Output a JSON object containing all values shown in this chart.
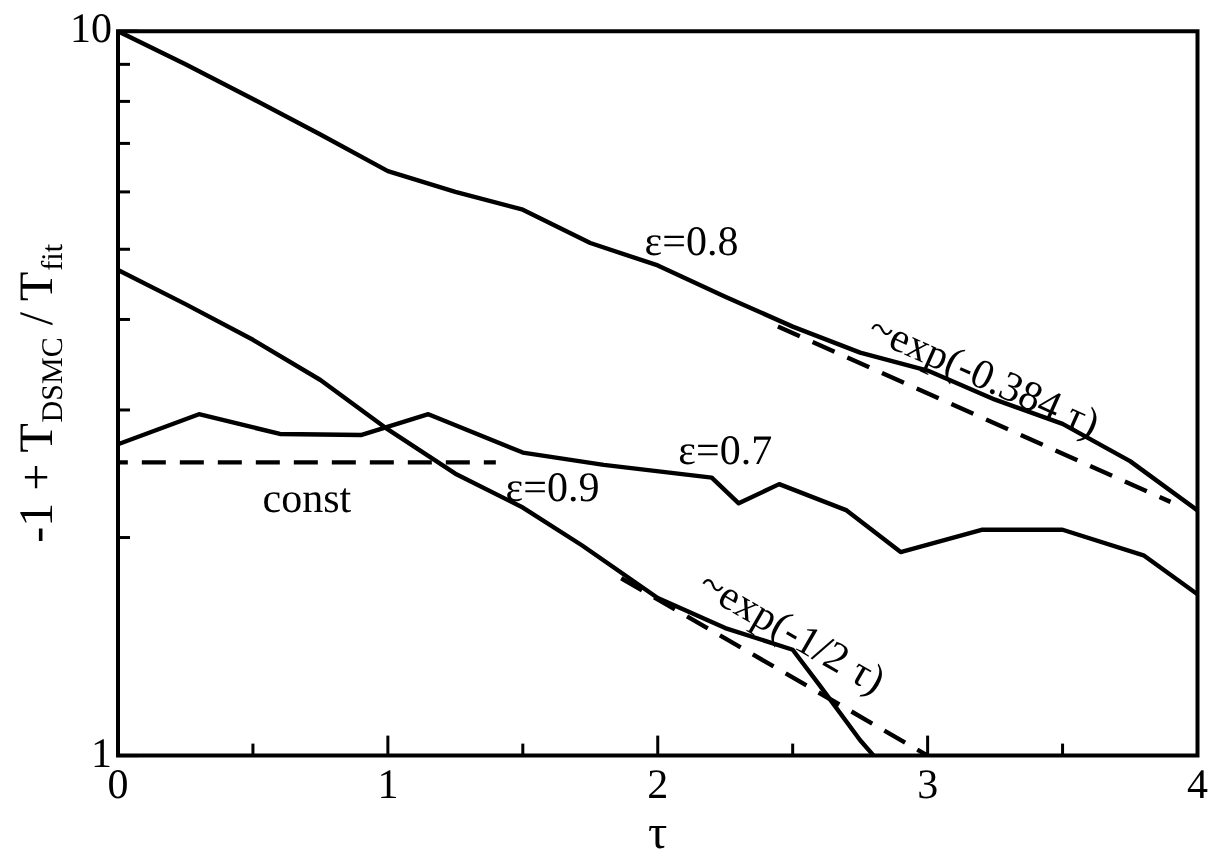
{
  "chart_data": {
    "type": "line",
    "xlabel": "τ",
    "ylabel": "-1 + T$_{DSMC}$ / T$_{fit}$",
    "log": "y",
    "grid": false,
    "legend": false,
    "marker": "none",
    "xlim": [
      0,
      4
    ],
    "ylim": [
      1,
      10
    ],
    "xticks": [
      0,
      {
        "value": 0.5,
        "label": null
      },
      1,
      {
        "value": 1.5,
        "label": null
      },
      2,
      {
        "value": 2.5,
        "label": null
      },
      3,
      {
        "value": 3.5,
        "label": null
      },
      4
    ],
    "yticks": [
      1,
      {
        "value": 2,
        "label": null
      },
      {
        "value": 3,
        "label": null
      },
      {
        "value": 4,
        "label": null
      },
      {
        "value": 5,
        "label": null
      },
      {
        "value": 6,
        "label": null
      },
      {
        "value": 7,
        "label": null
      },
      {
        "value": 8,
        "label": null
      },
      {
        "value": 9,
        "label": null
      },
      10
    ],
    "series": [
      {
        "name": "ε=0.8",
        "color": "#000000",
        "line_style": "solid",
        "x": [
          0,
          0.25,
          0.5,
          0.75,
          1,
          1.25,
          1.5,
          1.75,
          2,
          2.25,
          2.5,
          2.75,
          3,
          3.25,
          3.5,
          3.75,
          4
        ],
        "values": [
          10,
          9.0,
          8.06,
          7.2,
          6.41,
          6.0,
          5.67,
          5.1,
          4.75,
          4.3,
          3.91,
          3.6,
          3.4,
          3.1,
          2.87,
          2.55,
          2.18
        ]
      },
      {
        "name": "ε=0.9",
        "color": "#000000",
        "line_style": "solid",
        "x": [
          0,
          0.25,
          0.5,
          0.75,
          1,
          1.25,
          1.5,
          1.72,
          2,
          2.25,
          2.5,
          2.6,
          2.75,
          2.8
        ],
        "values": [
          4.68,
          4.2,
          3.75,
          3.3,
          2.82,
          2.45,
          2.2,
          1.95,
          1.65,
          1.5,
          1.4,
          1.25,
          1.05,
          1.0
        ]
      },
      {
        "name": "ε=0.7",
        "color": "#000000",
        "line_style": "solid",
        "x": [
          0,
          0.3,
          0.6,
          0.9,
          1.15,
          1.5,
          1.8,
          2.2,
          2.3,
          2.45,
          2.7,
          2.9,
          3.2,
          3.5,
          3.8,
          4
        ],
        "values": [
          2.69,
          2.96,
          2.78,
          2.77,
          2.96,
          2.62,
          2.52,
          2.42,
          2.23,
          2.37,
          2.18,
          1.91,
          2.05,
          2.05,
          1.89,
          1.67
        ]
      },
      {
        "name": "~exp(-0.384 τ)",
        "color": "#000000",
        "line_style": "dashed",
        "x": [
          2.4,
          3.9
        ],
        "values": [
          3.98,
          2.24
        ]
      },
      {
        "name": "~exp(-1/2 τ)",
        "color": "#000000",
        "line_style": "dashed",
        "x": [
          1.85,
          3
        ],
        "values": [
          1.77,
          1.0
        ]
      },
      {
        "name": "const",
        "color": "#000000",
        "line_style": "dashed",
        "x": [
          0,
          1.4
        ],
        "values": [
          2.54,
          2.54
        ]
      }
    ]
  }
}
